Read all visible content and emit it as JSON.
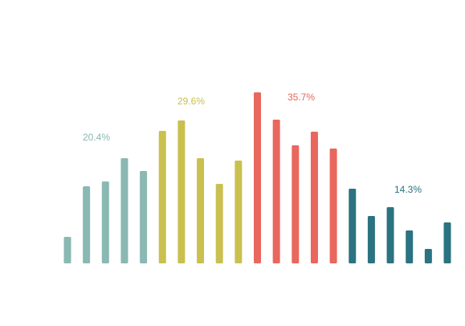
{
  "chart_data": {
    "type": "bar",
    "ylim": [
      0,
      220
    ],
    "groups": [
      {
        "color": "#8ab8b2",
        "share": 20.4,
        "share_label": "20.4%",
        "values": [
          33,
          96,
          102,
          131,
          115
        ]
      },
      {
        "color": "#c9c04f",
        "share": 29.6,
        "share_label": "29.6%",
        "values": [
          165,
          178,
          131,
          99,
          128
        ]
      },
      {
        "color": "#e9675d",
        "share": 35.7,
        "share_label": "35.7%",
        "values": [
          213,
          179,
          147,
          164,
          143
        ]
      },
      {
        "color": "#2b7380",
        "share": 14.3,
        "share_label": "14.3%",
        "values": [
          93,
          59,
          70,
          41,
          18,
          51
        ]
      }
    ]
  }
}
